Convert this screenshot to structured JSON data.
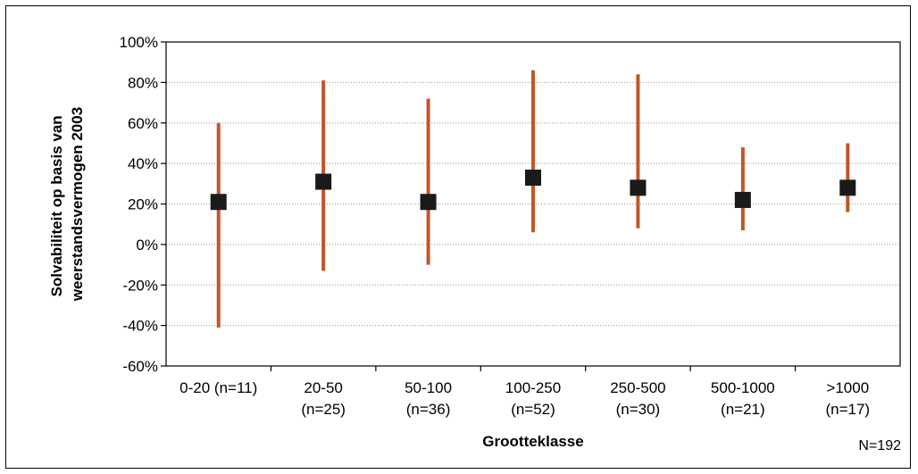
{
  "chart_data": {
    "type": "range-point",
    "xlabel": "Grootteklasse",
    "ylabel_lines": [
      "Solvabiliteit op basis van",
      "weerstandsvermogen 2003"
    ],
    "note": "N=192",
    "ylim": [
      -60,
      100
    ],
    "y_ticks": [
      -60,
      -40,
      -20,
      0,
      20,
      40,
      60,
      80,
      100
    ],
    "y_tick_labels": [
      "-60%",
      "-40%",
      "-20%",
      "0%",
      "20%",
      "40%",
      "60%",
      "80%",
      "100%"
    ],
    "grid": "horizontal-dotted",
    "categories": [
      {
        "line1": "0-20 (n=11)",
        "line2": ""
      },
      {
        "line1": "20-50",
        "line2": "(n=25)"
      },
      {
        "line1": "50-100",
        "line2": "(n=36)"
      },
      {
        "line1": "100-250",
        "line2": "(n=52)"
      },
      {
        "line1": "250-500",
        "line2": "(n=30)"
      },
      {
        "line1": "500-1000",
        "line2": "(n=21)"
      },
      {
        "line1": ">1000",
        "line2": "(n=17)"
      }
    ],
    "series": [
      {
        "values": [
          21,
          31,
          21,
          33,
          28,
          22,
          28
        ]
      },
      {
        "low": [
          -41,
          -13,
          -10,
          6,
          8,
          7,
          16
        ],
        "high": [
          60,
          81,
          72,
          86,
          84,
          48,
          50
        ]
      }
    ],
    "colors": {
      "range": "#c0562a",
      "point": "#1a1a1a",
      "grid": "#9a9a9a"
    }
  }
}
